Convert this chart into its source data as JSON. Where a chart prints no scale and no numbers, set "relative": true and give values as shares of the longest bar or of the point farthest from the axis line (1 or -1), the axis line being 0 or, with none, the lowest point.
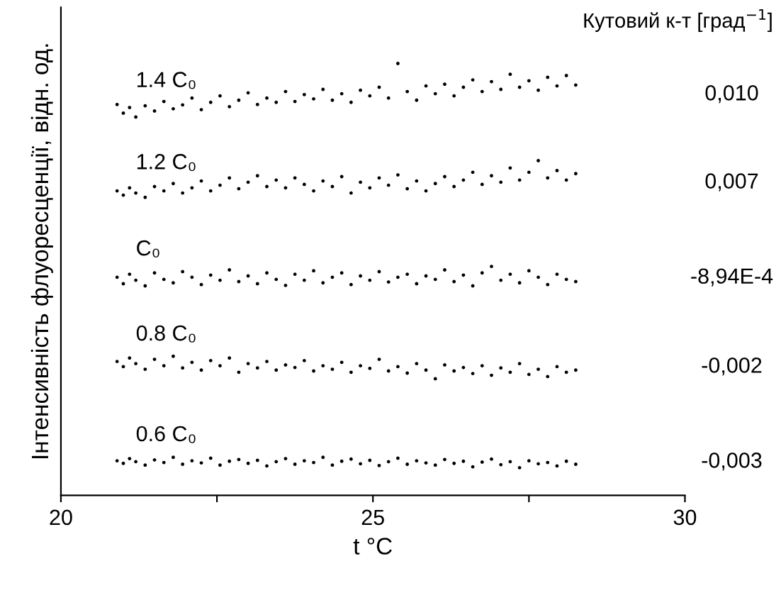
{
  "chart_data": {
    "type": "scatter",
    "relative": true,
    "xlabel": "t °C",
    "ylabel": "Інтенсивність флуоресценції, відн. од.",
    "xlim": [
      20,
      30
    ],
    "xticks": [
      20,
      {
        "value": 22.5,
        "label": null
      },
      25,
      {
        "value": 27.5,
        "label": null
      },
      30
    ],
    "marker": "circle",
    "grid": false,
    "legend": false,
    "annotations": [
      "Кутовий к-т [град$^{−1}$]",
      "0,010",
      "0,007",
      "-8,94E-4",
      "-0,002",
      "-0,003"
    ],
    "x": [
      20.9,
      21.0,
      21.1,
      21.2,
      21.35,
      21.5,
      21.65,
      21.8,
      21.95,
      22.1,
      22.25,
      22.4,
      22.55,
      22.7,
      22.85,
      23.0,
      23.15,
      23.3,
      23.45,
      23.6,
      23.75,
      23.9,
      24.05,
      24.2,
      24.35,
      24.5,
      24.65,
      24.8,
      24.95,
      25.1,
      25.25,
      25.4,
      25.55,
      25.7,
      25.85,
      26.0,
      26.15,
      26.3,
      26.45,
      26.6,
      26.75,
      26.9,
      27.05,
      27.2,
      27.35,
      27.5,
      27.65,
      27.8,
      27.95,
      28.1,
      28.25
    ],
    "series": [
      {
        "name": "1.4 C₀",
        "color": "#000000",
        "values": [
          0.905,
          0.885,
          0.898,
          0.876,
          0.902,
          0.89,
          0.912,
          0.895,
          0.904,
          0.92,
          0.893,
          0.91,
          0.925,
          0.9,
          0.915,
          0.932,
          0.905,
          0.92,
          0.91,
          0.935,
          0.912,
          0.928,
          0.918,
          0.94,
          0.915,
          0.93,
          0.91,
          0.938,
          0.925,
          0.945,
          0.92,
          1.0,
          0.935,
          0.915,
          0.948,
          0.93,
          0.952,
          0.925,
          0.945,
          0.962,
          0.935,
          0.958,
          0.94,
          0.975,
          0.945,
          0.96,
          0.938,
          0.968,
          0.948,
          0.972,
          0.95
        ]
      },
      {
        "name": "1.2 C₀",
        "color": "#000000",
        "values": [
          0.705,
          0.695,
          0.712,
          0.7,
          0.69,
          0.715,
          0.705,
          0.722,
          0.7,
          0.712,
          0.728,
          0.705,
          0.718,
          0.735,
          0.71,
          0.725,
          0.74,
          0.715,
          0.73,
          0.712,
          0.735,
          0.72,
          0.705,
          0.728,
          0.715,
          0.738,
          0.7,
          0.725,
          0.712,
          0.735,
          0.718,
          0.742,
          0.71,
          0.728,
          0.705,
          0.722,
          0.738,
          0.715,
          0.73,
          0.748,
          0.72,
          0.74,
          0.725,
          0.758,
          0.73,
          0.748,
          0.775,
          0.735,
          0.752,
          0.73,
          0.745
        ]
      },
      {
        "name": "C₀",
        "color": "#000000",
        "values": [
          0.505,
          0.49,
          0.512,
          0.498,
          0.485,
          0.515,
          0.5,
          0.492,
          0.518,
          0.505,
          0.488,
          0.51,
          0.498,
          0.522,
          0.495,
          0.508,
          0.49,
          0.515,
          0.5,
          0.486,
          0.512,
          0.498,
          0.52,
          0.492,
          0.505,
          0.515,
          0.488,
          0.508,
          0.498,
          0.518,
          0.494,
          0.505,
          0.512,
          0.49,
          0.508,
          0.5,
          0.522,
          0.495,
          0.51,
          0.485,
          0.515,
          0.53,
          0.498,
          0.512,
          0.492,
          0.52,
          0.505,
          0.488,
          0.512,
          0.5,
          0.495
        ]
      },
      {
        "name": "0.8 C₀",
        "color": "#000000",
        "values": [
          0.31,
          0.298,
          0.318,
          0.305,
          0.292,
          0.315,
          0.3,
          0.322,
          0.295,
          0.308,
          0.29,
          0.312,
          0.3,
          0.318,
          0.285,
          0.305,
          0.295,
          0.31,
          0.29,
          0.302,
          0.296,
          0.312,
          0.288,
          0.3,
          0.292,
          0.308,
          0.285,
          0.3,
          0.294,
          0.315,
          0.288,
          0.298,
          0.283,
          0.305,
          0.29,
          0.27,
          0.302,
          0.288,
          0.296,
          0.282,
          0.3,
          0.278,
          0.295,
          0.285,
          0.305,
          0.28,
          0.292,
          0.275,
          0.298,
          0.285,
          0.29
        ]
      },
      {
        "name": "0.6 C₀",
        "color": "#000000",
        "values": [
          0.08,
          0.074,
          0.085,
          0.078,
          0.07,
          0.082,
          0.076,
          0.088,
          0.072,
          0.08,
          0.075,
          0.086,
          0.07,
          0.079,
          0.083,
          0.074,
          0.081,
          0.068,
          0.078,
          0.085,
          0.072,
          0.08,
          0.076,
          0.088,
          0.07,
          0.079,
          0.084,
          0.073,
          0.081,
          0.069,
          0.078,
          0.086,
          0.072,
          0.08,
          0.075,
          0.07,
          0.083,
          0.074,
          0.079,
          0.066,
          0.077,
          0.084,
          0.071,
          0.078,
          0.064,
          0.08,
          0.073,
          0.076,
          0.068,
          0.079,
          0.072
        ]
      }
    ]
  }
}
